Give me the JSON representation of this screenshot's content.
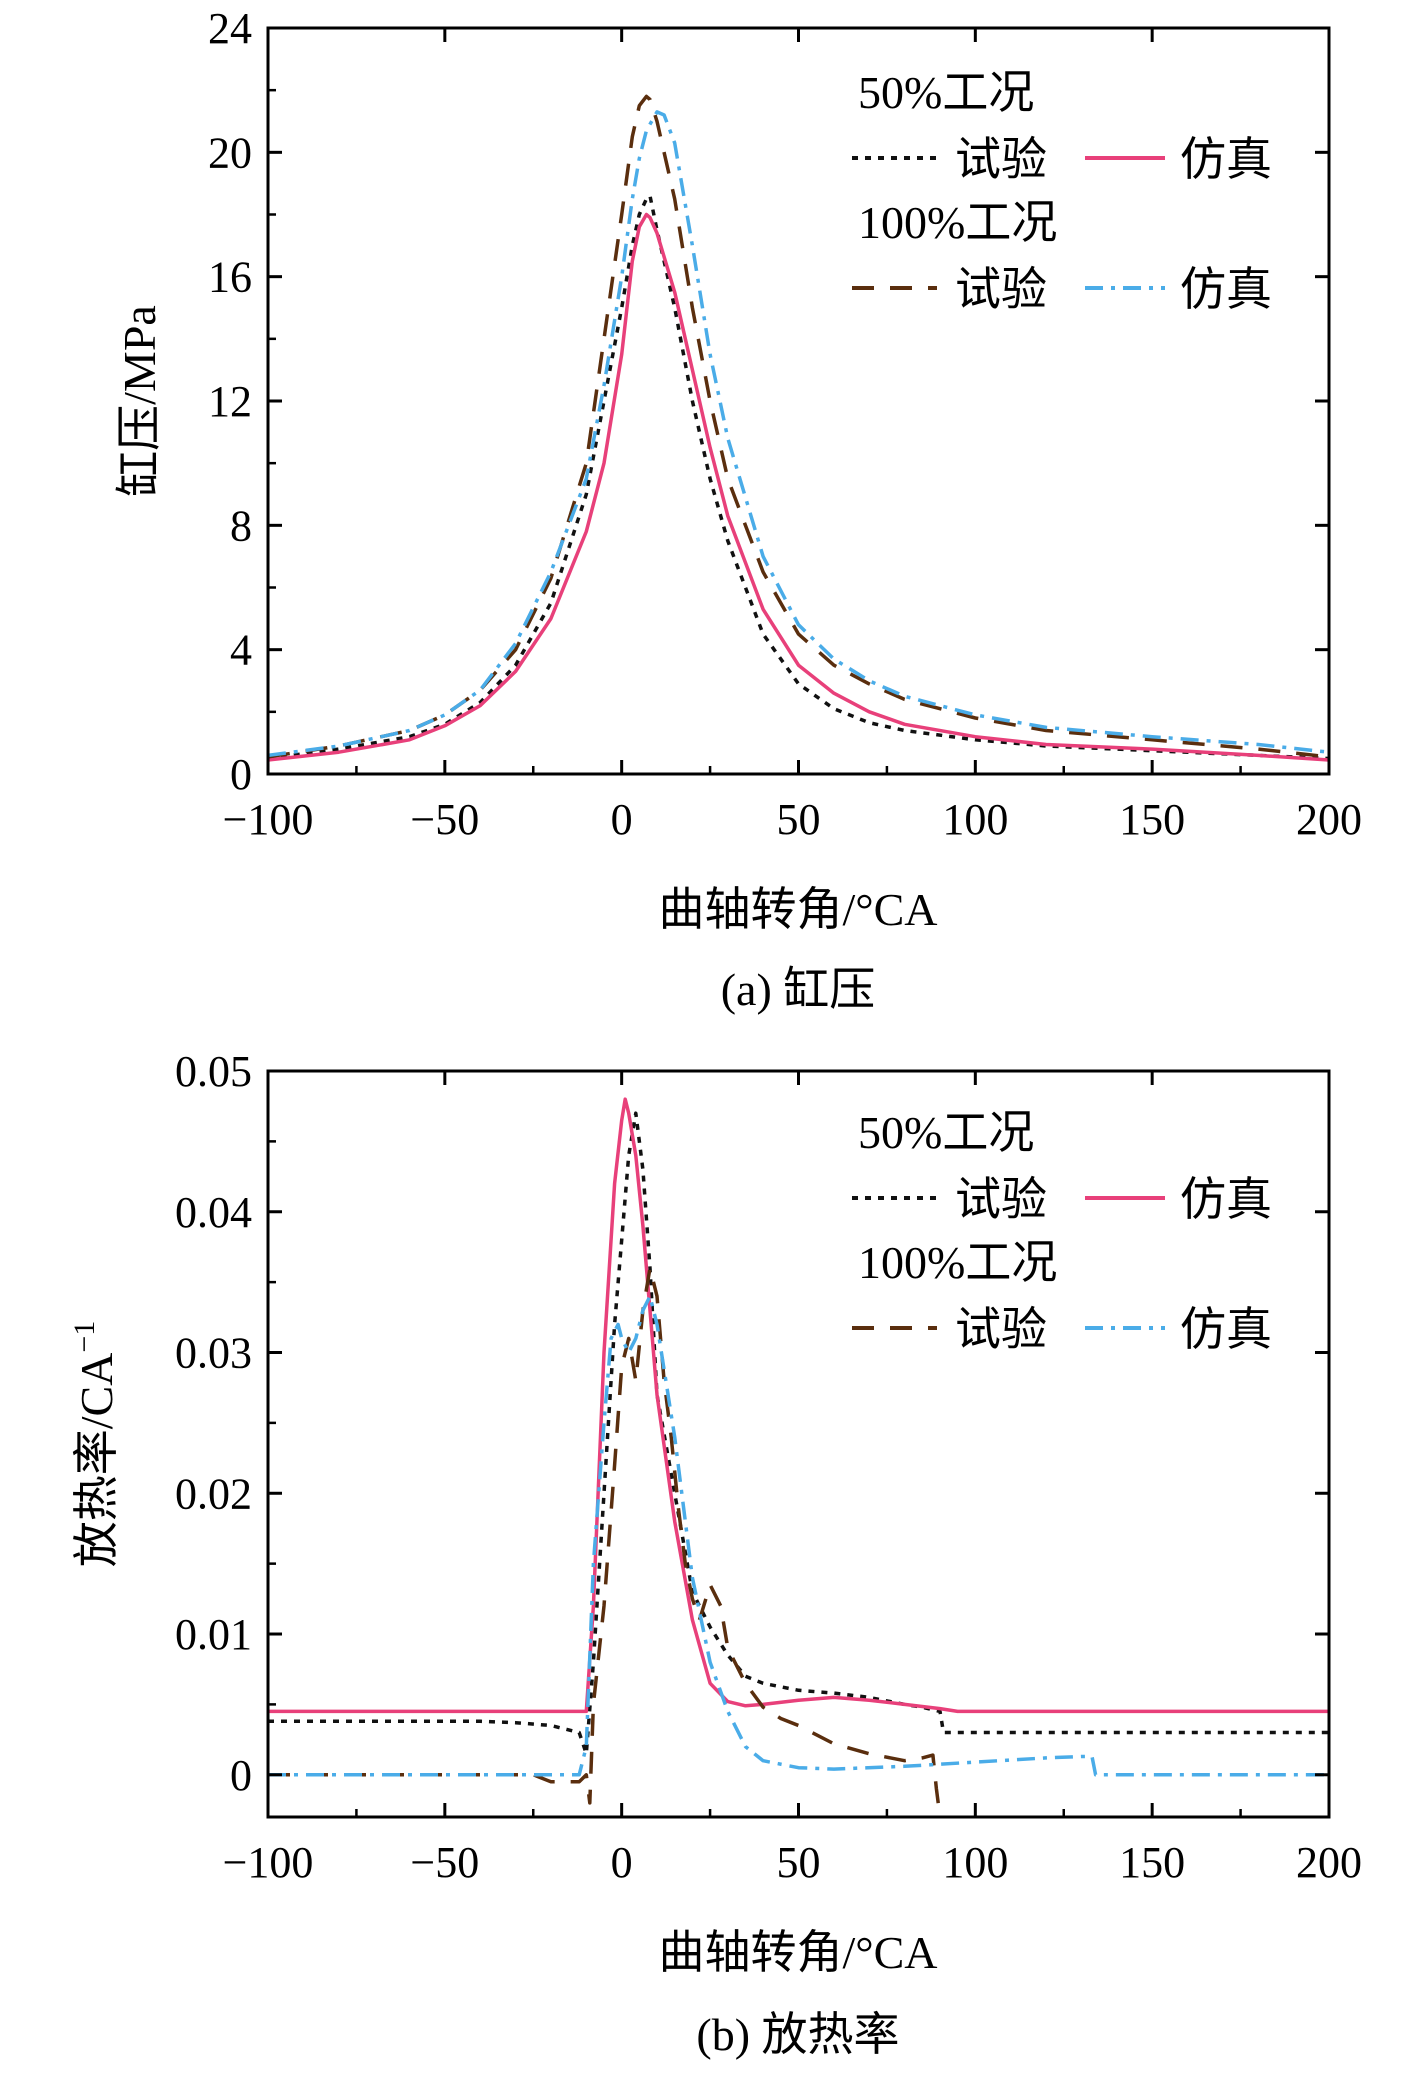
{
  "chart_data": [
    {
      "type": "line",
      "caption": "(a) 缸压",
      "xlabel": "曲轴转角/°CA",
      "ylabel": "缸压/MPa",
      "xlim": [
        -100,
        200
      ],
      "ylim": [
        0,
        24
      ],
      "xticks": [
        -100,
        -50,
        0,
        50,
        100,
        150,
        200
      ],
      "xtick_labels": [
        "−100",
        "−50",
        "0",
        "50",
        "100",
        "150",
        "200"
      ],
      "yticks": [
        0,
        4,
        8,
        12,
        16,
        20,
        24
      ],
      "ytick_labels": [
        "0",
        "4",
        "8",
        "12",
        "16",
        "20",
        "24"
      ],
      "legend": {
        "position": "top-right",
        "group1_title": "50%工况",
        "group2_title": "100%工况",
        "entries": [
          "试验",
          "仿真",
          "试验",
          "仿真"
        ]
      },
      "series": [
        {
          "name": "50%工况 试验",
          "style": "dotted",
          "color": "#111111",
          "x": [
            -100,
            -80,
            -60,
            -50,
            -40,
            -30,
            -20,
            -10,
            -5,
            0,
            3,
            5,
            7,
            8,
            10,
            15,
            20,
            25,
            30,
            40,
            50,
            60,
            70,
            80,
            100,
            120,
            150,
            180,
            200
          ],
          "y": [
            0.5,
            0.8,
            1.2,
            1.6,
            2.3,
            3.5,
            5.5,
            9.0,
            12.0,
            15.0,
            17.0,
            18.0,
            18.5,
            18.6,
            17.5,
            15.0,
            12.0,
            9.5,
            7.5,
            4.5,
            2.9,
            2.1,
            1.65,
            1.4,
            1.1,
            0.9,
            0.75,
            0.6,
            0.5
          ]
        },
        {
          "name": "50%工况 仿真",
          "style": "solid",
          "color": "#e8407a",
          "x": [
            -100,
            -80,
            -60,
            -50,
            -40,
            -30,
            -20,
            -10,
            -5,
            0,
            3,
            5,
            7,
            8,
            10,
            15,
            20,
            25,
            30,
            40,
            50,
            60,
            70,
            80,
            100,
            120,
            150,
            180,
            200
          ],
          "y": [
            0.45,
            0.7,
            1.1,
            1.55,
            2.2,
            3.3,
            5.0,
            7.8,
            10.0,
            13.5,
            16.5,
            17.6,
            18.0,
            17.9,
            17.4,
            15.5,
            13.0,
            10.5,
            8.3,
            5.3,
            3.5,
            2.6,
            2.0,
            1.6,
            1.2,
            0.95,
            0.8,
            0.6,
            0.45
          ]
        },
        {
          "name": "100%工况 试验",
          "style": "dashed",
          "color": "#5a2e0e",
          "x": [
            -100,
            -80,
            -60,
            -50,
            -40,
            -30,
            -20,
            -10,
            -5,
            0,
            3,
            5,
            7,
            8,
            10,
            15,
            20,
            25,
            30,
            40,
            50,
            60,
            70,
            80,
            100,
            120,
            150,
            180,
            200
          ],
          "y": [
            0.55,
            0.9,
            1.4,
            1.9,
            2.7,
            4.0,
            6.3,
            10.0,
            14.0,
            18.0,
            20.5,
            21.5,
            21.8,
            21.7,
            21.0,
            18.5,
            15.0,
            12.0,
            9.5,
            6.5,
            4.5,
            3.5,
            2.9,
            2.4,
            1.8,
            1.4,
            1.1,
            0.8,
            0.55
          ]
        },
        {
          "name": "100%工况 仿真",
          "style": "dashdot",
          "color": "#4aace8",
          "x": [
            -100,
            -80,
            -60,
            -50,
            -40,
            -30,
            -20,
            -10,
            -5,
            0,
            3,
            5,
            7,
            10,
            12,
            15,
            20,
            25,
            30,
            40,
            50,
            60,
            70,
            80,
            100,
            120,
            150,
            180,
            200
          ],
          "y": [
            0.6,
            0.9,
            1.4,
            1.9,
            2.7,
            4.2,
            6.5,
            9.5,
            12.5,
            16.0,
            18.5,
            19.8,
            20.7,
            21.3,
            21.2,
            20.3,
            17.0,
            13.5,
            10.8,
            7.0,
            4.8,
            3.7,
            3.0,
            2.5,
            1.9,
            1.5,
            1.2,
            0.95,
            0.7
          ]
        }
      ]
    },
    {
      "type": "line",
      "caption": "(b) 放热率",
      "xlabel": "曲轴转角/°CA",
      "ylabel": "放热率/CA",
      "ylabel_sup": "−1",
      "xlim": [
        -100,
        200
      ],
      "ylim": [
        -0.003,
        0.05
      ],
      "xticks": [
        -100,
        -50,
        0,
        50,
        100,
        150,
        200
      ],
      "xtick_labels": [
        "−100",
        "−50",
        "0",
        "50",
        "100",
        "150",
        "200"
      ],
      "yticks": [
        0,
        0.01,
        0.02,
        0.03,
        0.04,
        0.05
      ],
      "ytick_labels": [
        "0",
        "0.01",
        "0.02",
        "0.03",
        "0.04",
        "0.05"
      ],
      "legend": {
        "position": "top-right",
        "group1_title": "50%工况",
        "group2_title": "100%工况",
        "entries": [
          "试验",
          "仿真",
          "试验",
          "仿真"
        ]
      },
      "series": [
        {
          "name": "50%工况 试验",
          "style": "dotted",
          "color": "#111111",
          "x": [
            -100,
            -40,
            -30,
            -20,
            -12,
            -10,
            -8,
            -5,
            -2,
            0,
            2,
            4,
            6,
            8,
            10,
            15,
            20,
            25,
            30,
            35,
            40,
            50,
            60,
            70,
            80,
            85,
            90,
            91,
            100,
            150,
            200
          ],
          "y": [
            0.0038,
            0.0038,
            0.0037,
            0.0035,
            0.003,
            0.0015,
            0.008,
            0.02,
            0.032,
            0.038,
            0.044,
            0.047,
            0.043,
            0.036,
            0.027,
            0.02,
            0.013,
            0.0105,
            0.0085,
            0.007,
            0.0065,
            0.006,
            0.0058,
            0.0055,
            0.005,
            0.0048,
            0.0045,
            0.003,
            0.003,
            0.003,
            0.003
          ]
        },
        {
          "name": "50%工况 仿真",
          "style": "solid",
          "color": "#e8407a",
          "x": [
            -100,
            -10,
            -8,
            -5,
            -2,
            0,
            1,
            2,
            4,
            6,
            8,
            10,
            15,
            20,
            25,
            30,
            35,
            40,
            50,
            60,
            70,
            80,
            90,
            95,
            100,
            150,
            200
          ],
          "y": [
            0.0045,
            0.0045,
            0.012,
            0.03,
            0.042,
            0.0465,
            0.048,
            0.047,
            0.044,
            0.039,
            0.033,
            0.027,
            0.018,
            0.011,
            0.0065,
            0.0052,
            0.0049,
            0.005,
            0.0053,
            0.0055,
            0.0053,
            0.005,
            0.0047,
            0.0045,
            0.0045,
            0.0045,
            0.0045
          ]
        },
        {
          "name": "100%工况 试验",
          "style": "dashed",
          "color": "#5a2e0e",
          "x": [
            -100,
            -25,
            -20,
            -12,
            -10,
            -9,
            -8,
            -5,
            -2,
            0,
            2,
            4,
            6,
            8,
            10,
            12,
            14,
            16,
            18,
            20,
            22,
            25,
            28,
            30,
            35,
            40,
            45,
            50,
            60,
            70,
            80,
            85,
            88,
            89,
            90
          ],
          "y": [
            0.0,
            0.0,
            -0.0005,
            -0.0005,
            0.0,
            -0.002,
            0.005,
            0.012,
            0.022,
            0.029,
            0.031,
            0.028,
            0.033,
            0.036,
            0.034,
            0.028,
            0.024,
            0.019,
            0.015,
            0.0125,
            0.011,
            0.0135,
            0.012,
            0.009,
            0.0065,
            0.0048,
            0.004,
            0.0035,
            0.0022,
            0.0015,
            0.001,
            0.0012,
            0.0014,
            -0.001,
            -0.003
          ]
        },
        {
          "name": "100%工况 仿真",
          "style": "dashdot",
          "color": "#4aace8",
          "x": [
            -100,
            -12,
            -10,
            -8,
            -5,
            -3,
            -1,
            0,
            2,
            4,
            6,
            8,
            10,
            15,
            20,
            25,
            30,
            35,
            40,
            50,
            60,
            80,
            100,
            120,
            130,
            133,
            134,
            140,
            200
          ],
          "y": [
            0.0,
            0.0,
            0.002,
            0.015,
            0.025,
            0.031,
            0.032,
            0.031,
            0.03,
            0.031,
            0.033,
            0.034,
            0.032,
            0.024,
            0.014,
            0.008,
            0.0045,
            0.002,
            0.001,
            0.0005,
            0.0004,
            0.0006,
            0.0009,
            0.0012,
            0.0013,
            0.0013,
            0.0,
            0.0,
            0.0
          ]
        }
      ]
    }
  ]
}
